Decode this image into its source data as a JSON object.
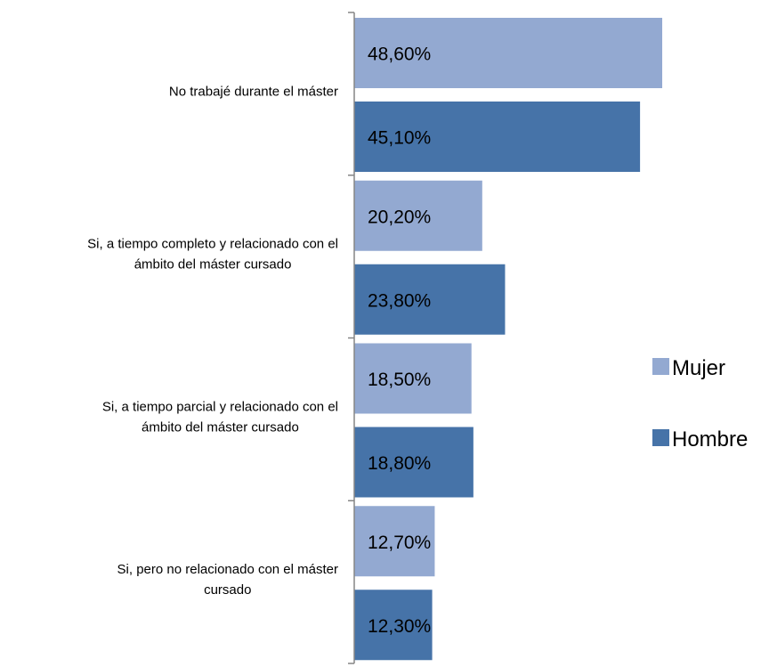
{
  "chart_data": {
    "type": "bar",
    "orientation": "horizontal",
    "categories": [
      [
        "No trabajé durante el máster"
      ],
      [
        "Si, a tiempo completo y relacionado con el",
        "ámbito del máster cursado"
      ],
      [
        "Si, a tiempo parcial y relacionado con el",
        "ámbito del máster cursado"
      ],
      [
        "Si, pero no relacionado con el máster",
        "cursado"
      ]
    ],
    "series": [
      {
        "name": "Mujer",
        "color": "#93A9D1",
        "values": [
          48.6,
          20.2,
          18.5,
          12.7
        ],
        "labels": [
          "48,60%",
          "20,20%",
          "18,50%",
          "12,70%"
        ]
      },
      {
        "name": "Hombre",
        "color": "#4673A8",
        "values": [
          45.1,
          23.8,
          18.8,
          12.3
        ],
        "labels": [
          "45,10%",
          "23,80%",
          "18,80%",
          "12,30%"
        ]
      }
    ],
    "xlim": [
      0,
      50
    ],
    "grid": false,
    "legend_position": "right"
  }
}
